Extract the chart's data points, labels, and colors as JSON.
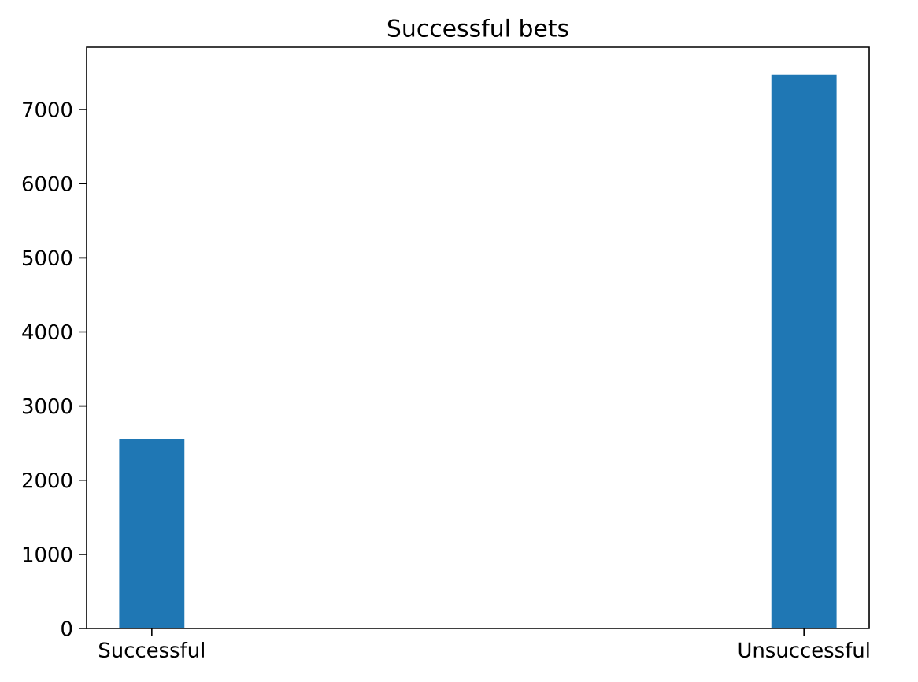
{
  "chart_data": {
    "type": "bar",
    "title": "Successful bets",
    "categories": [
      "Successful",
      "Unsuccessful"
    ],
    "values": [
      2550,
      7470
    ],
    "color": "#1f77b4",
    "ylim": [
      0,
      7840
    ],
    "yticks": [
      0,
      1000,
      2000,
      3000,
      4000,
      5000,
      6000,
      7000
    ],
    "grid": false
  }
}
